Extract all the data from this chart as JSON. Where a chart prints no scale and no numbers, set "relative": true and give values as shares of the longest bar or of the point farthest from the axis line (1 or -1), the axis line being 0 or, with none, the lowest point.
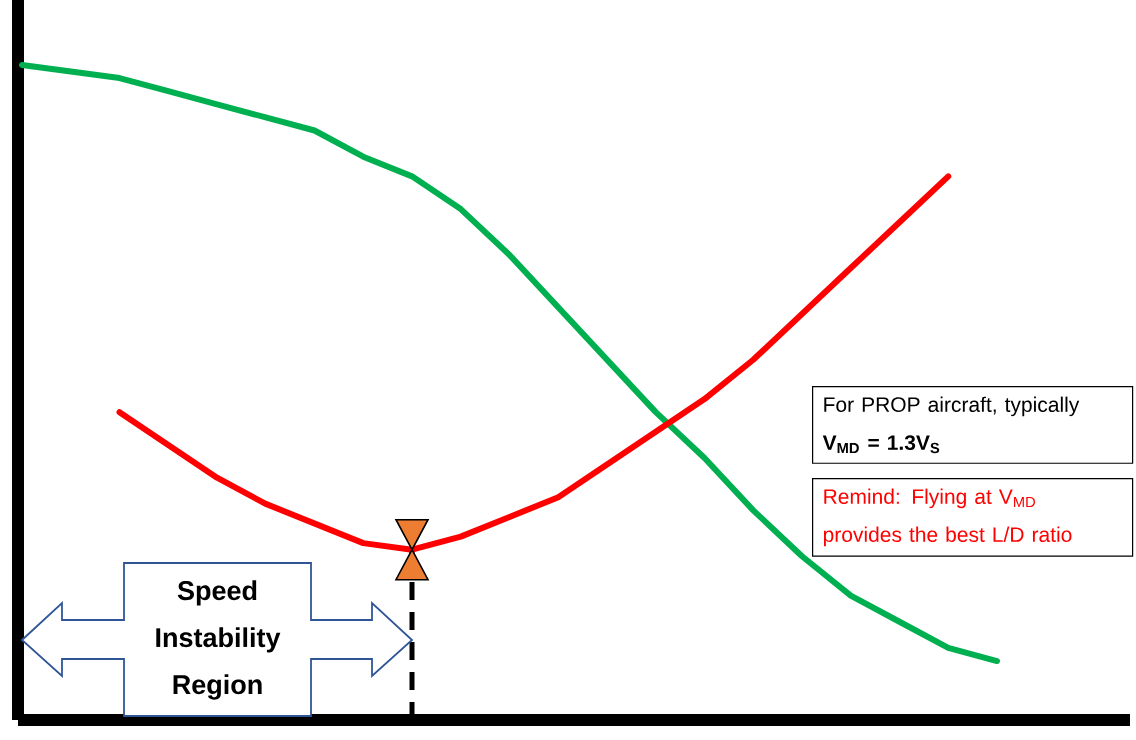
{
  "chart_data": {
    "type": "line",
    "relative": true,
    "categories": [
      null,
      null,
      null,
      null,
      null,
      null,
      null,
      null,
      null,
      null,
      null,
      null,
      null,
      null,
      null,
      null,
      null,
      null,
      null,
      null,
      null
    ],
    "series": [
      {
        "color": "#00b050",
        "values": [
          1.0,
          0.99,
          0.98,
          0.96,
          0.94,
          0.92,
          0.9,
          0.86,
          0.83,
          0.78,
          0.71,
          0.63,
          0.55,
          0.47,
          0.4,
          0.32,
          0.25,
          0.19,
          0.15,
          0.11,
          0.09
        ]
      },
      {
        "color": "#ff0000",
        "values": [
          null,
          null,
          0.47,
          0.42,
          0.37,
          0.33,
          0.3,
          0.27,
          0.26,
          0.28,
          0.31,
          0.34,
          0.39,
          0.44,
          0.49,
          0.55,
          0.62,
          0.69,
          0.76,
          0.83,
          null
        ]
      }
    ],
    "annotations": [
      "Speed Instability Region",
      "For PROP aircraft, typically",
      "V$_{MD}$ = 1.3V$_{S}$",
      "Remind: Flying at V$_{MD}$ provides the best L/D ratio"
    ]
  }
}
